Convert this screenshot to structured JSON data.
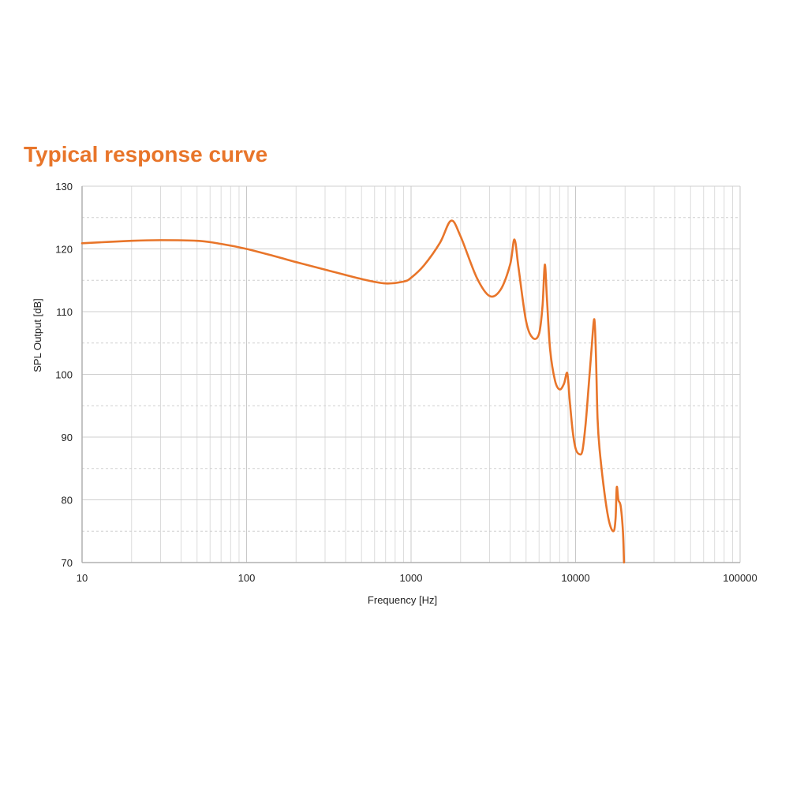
{
  "chart_data": {
    "type": "line",
    "title": "Typical response curve",
    "xlabel": "Frequency [Hz]",
    "ylabel": "SPL Output [dB]",
    "x_scale": "log",
    "xlim": [
      10,
      100000
    ],
    "ylim": [
      70,
      130
    ],
    "x_ticks": [
      10,
      100,
      1000,
      10000,
      100000
    ],
    "x_tick_labels": [
      "10",
      "100",
      "1000",
      "10000",
      "100000"
    ],
    "y_ticks": [
      70,
      80,
      90,
      100,
      110,
      120,
      130
    ],
    "y_tick_labels": [
      "70",
      "80",
      "90",
      "100",
      "110",
      "120",
      "130"
    ],
    "grid": true,
    "line_color": "#e8752a",
    "series": [
      {
        "x": [
          10,
          20,
          30,
          50,
          70,
          100,
          150,
          200,
          300,
          500,
          700,
          900,
          1000,
          1200,
          1500,
          1750,
          2000,
          2500,
          3000,
          3500,
          4000,
          4250,
          4500,
          5000,
          5500,
          6000,
          6300,
          6500,
          6700,
          7000,
          7500,
          8000,
          8500,
          8900,
          9200,
          9600,
          10000,
          10500,
          11000,
          11500,
          12000,
          12500,
          13000,
          13300,
          13600,
          14000,
          15000,
          16000,
          17000,
          17500,
          17800,
          18200,
          18800,
          19400,
          19700
        ],
        "y": [
          120.9,
          121.3,
          121.4,
          121.3,
          120.8,
          120.0,
          118.8,
          117.9,
          116.7,
          115.2,
          114.5,
          114.8,
          115.4,
          117.4,
          121.0,
          124.5,
          122.0,
          115.5,
          112.5,
          113.5,
          117.5,
          121.5,
          117.0,
          108.5,
          105.8,
          106.5,
          111.0,
          117.5,
          112.0,
          104.0,
          99.0,
          97.6,
          98.5,
          100.2,
          96.0,
          91.0,
          88.2,
          87.3,
          87.8,
          92.0,
          98.0,
          104.0,
          108.8,
          103.0,
          93.0,
          88.0,
          81.0,
          76.5,
          75.0,
          77.0,
          82.0,
          80.0,
          79.0,
          75.0,
          70.0
        ]
      }
    ]
  }
}
